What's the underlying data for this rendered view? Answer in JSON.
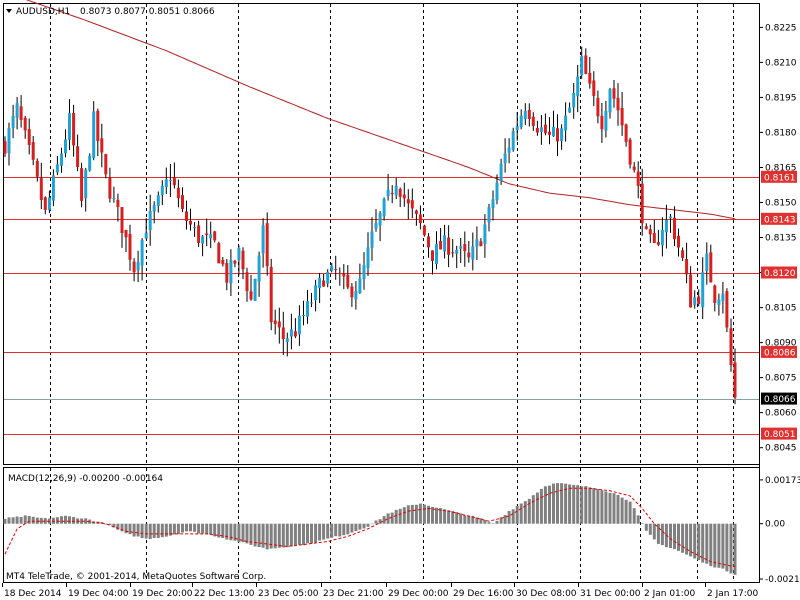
{
  "header": {
    "symbol_label": "AUDUSD,H1",
    "ohlc": "0.8073 0.8077 0.8051 0.8066"
  },
  "copyright": "MT4 TeleTrade, © 2001-2014, MetaQuotes Software Corp.",
  "colors": {
    "background": "#ffffff",
    "bull": "#1fa3d6",
    "bear": "#d61f1f",
    "level_line": "#e03030",
    "ma_line": "#b22222",
    "macd_hist": "#808080",
    "signal": "#e00000",
    "grid": "#000000"
  },
  "chart_data": [
    {
      "type": "candlestick",
      "title": "AUDUSD,H1",
      "ylim": [
        0.8038,
        0.8235
      ],
      "y_ticks": [
        "0.8225",
        "0.8210",
        "0.8195",
        "0.8180",
        "0.8165",
        "0.8150",
        "0.8135",
        "0.8120",
        "0.8105",
        "0.8090",
        "0.8075",
        "0.8060",
        "0.8045"
      ],
      "current_price": "0.8066",
      "horizontal_levels": [
        "0.8161",
        "0.8143",
        "0.8120",
        "0.8086",
        "0.8051"
      ],
      "x_tick_labels": [
        "18 Dec 2014",
        "19 Dec 04:00",
        "19 Dec 20:00",
        "22 Dec 13:00",
        "23 Dec 05:00",
        "23 Dec 21:00",
        "29 Dec 00:00",
        "29 Dec 16:00",
        "30 Dec 08:00",
        "31 Dec 00:00",
        "2 Jan 01:00",
        "2 Jan 17:00"
      ],
      "path": [
        [
          0,
          0.8175
        ],
        [
          3,
          0.819
        ],
        [
          7,
          0.8165
        ],
        [
          10,
          0.8145
        ],
        [
          13,
          0.8165
        ],
        [
          16,
          0.8185
        ],
        [
          19,
          0.815
        ],
        [
          22,
          0.8185
        ],
        [
          25,
          0.816
        ],
        [
          29,
          0.814
        ],
        [
          32,
          0.8122
        ],
        [
          35,
          0.814
        ],
        [
          38,
          0.815
        ],
        [
          41,
          0.8162
        ],
        [
          44,
          0.8145
        ],
        [
          48,
          0.8135
        ],
        [
          52,
          0.8132
        ],
        [
          55,
          0.8118
        ],
        [
          58,
          0.8128
        ],
        [
          61,
          0.8108
        ],
        [
          64,
          0.8138
        ],
        [
          66,
          0.81
        ],
        [
          69,
          0.8092
        ],
        [
          72,
          0.8095
        ],
        [
          76,
          0.8108
        ],
        [
          79,
          0.8118
        ],
        [
          82,
          0.812
        ],
        [
          85,
          0.8112
        ],
        [
          88,
          0.8115
        ],
        [
          91,
          0.8135
        ],
        [
          94,
          0.8148
        ],
        [
          97,
          0.816
        ],
        [
          100,
          0.8148
        ],
        [
          103,
          0.814
        ],
        [
          106,
          0.8128
        ],
        [
          109,
          0.8132
        ],
        [
          112,
          0.813
        ],
        [
          115,
          0.8125
        ],
        [
          118,
          0.8135
        ],
        [
          120,
          0.8145
        ],
        [
          123,
          0.8165
        ],
        [
          126,
          0.818
        ],
        [
          129,
          0.8192
        ],
        [
          132,
          0.8183
        ],
        [
          135,
          0.8178
        ],
        [
          138,
          0.818
        ],
        [
          141,
          0.8195
        ],
        [
          143,
          0.821
        ],
        [
          145,
          0.8198
        ],
        [
          148,
          0.8185
        ],
        [
          150,
          0.82
        ],
        [
          152,
          0.819
        ],
        [
          155,
          0.817
        ],
        [
          157,
          0.8155
        ],
        [
          159,
          0.8135
        ],
        [
          161,
          0.813
        ],
        [
          163,
          0.814
        ],
        [
          165,
          0.8143
        ],
        [
          168,
          0.8125
        ],
        [
          170,
          0.8108
        ],
        [
          172,
          0.811
        ],
        [
          174,
          0.8125
        ],
        [
          176,
          0.811
        ],
        [
          178,
          0.8113
        ],
        [
          179,
          0.8095
        ],
        [
          180,
          0.808
        ],
        [
          181,
          0.8066
        ]
      ],
      "ma_path": [
        [
          0,
          0.824
        ],
        [
          20,
          0.8228
        ],
        [
          40,
          0.8215
        ],
        [
          60,
          0.82
        ],
        [
          80,
          0.8186
        ],
        [
          100,
          0.8174
        ],
        [
          115,
          0.8165
        ],
        [
          125,
          0.8158
        ],
        [
          135,
          0.8154
        ],
        [
          145,
          0.8152
        ],
        [
          155,
          0.8149
        ],
        [
          165,
          0.8147
        ],
        [
          175,
          0.8145
        ],
        [
          181,
          0.8143
        ]
      ]
    },
    {
      "type": "bar",
      "title": "MACD(12,26,9) -0.00200 -0.00164",
      "ylim": [
        -0.0023,
        0.0022
      ],
      "y_ticks": [
        "0.00173",
        "0.00",
        "-0.00218"
      ],
      "hist_path": [
        [
          0,
          0.0002
        ],
        [
          5,
          0.0003
        ],
        [
          10,
          0.0002
        ],
        [
          15,
          0.0003
        ],
        [
          20,
          0.0002
        ],
        [
          25,
          0.0
        ],
        [
          30,
          -0.0004
        ],
        [
          35,
          -0.0006
        ],
        [
          40,
          -0.0005
        ],
        [
          45,
          -0.0003
        ],
        [
          50,
          -0.0004
        ],
        [
          55,
          -0.0006
        ],
        [
          60,
          -0.0008
        ],
        [
          65,
          -0.001
        ],
        [
          70,
          -0.0009
        ],
        [
          75,
          -0.0008
        ],
        [
          80,
          -0.0006
        ],
        [
          85,
          -0.0004
        ],
        [
          90,
          -0.0001
        ],
        [
          95,
          0.0004
        ],
        [
          100,
          0.0007
        ],
        [
          103,
          0.0008
        ],
        [
          108,
          0.0006
        ],
        [
          113,
          0.0004
        ],
        [
          118,
          0.0002
        ],
        [
          121,
          0.0
        ],
        [
          125,
          0.0005
        ],
        [
          130,
          0.001
        ],
        [
          134,
          0.0015
        ],
        [
          137,
          0.0016
        ],
        [
          142,
          0.0015
        ],
        [
          147,
          0.0014
        ],
        [
          151,
          0.0012
        ],
        [
          155,
          0.0009
        ],
        [
          159,
          -0.0003
        ],
        [
          162,
          -0.0008
        ],
        [
          166,
          -0.001
        ],
        [
          170,
          -0.0013
        ],
        [
          174,
          -0.0016
        ],
        [
          178,
          -0.0018
        ],
        [
          181,
          -0.002
        ]
      ],
      "signal_path": [
        [
          0,
          -0.0012
        ],
        [
          3,
          -0.0002
        ],
        [
          6,
          0.0001
        ],
        [
          10,
          0.0001
        ],
        [
          15,
          0.0001
        ],
        [
          20,
          0.0001
        ],
        [
          25,
          0.0
        ],
        [
          30,
          -0.0003
        ],
        [
          35,
          -0.0004
        ],
        [
          40,
          -0.0004
        ],
        [
          45,
          -0.0004
        ],
        [
          50,
          -0.0004
        ],
        [
          55,
          -0.0005
        ],
        [
          60,
          -0.0007
        ],
        [
          65,
          -0.0008
        ],
        [
          70,
          -0.0009
        ],
        [
          75,
          -0.0008
        ],
        [
          80,
          -0.0007
        ],
        [
          85,
          -0.0005
        ],
        [
          90,
          -0.0002
        ],
        [
          95,
          0.0002
        ],
        [
          100,
          0.0005
        ],
        [
          105,
          0.0006
        ],
        [
          110,
          0.0005
        ],
        [
          115,
          0.0003
        ],
        [
          120,
          0.0001
        ],
        [
          125,
          0.0003
        ],
        [
          130,
          0.0008
        ],
        [
          135,
          0.0012
        ],
        [
          140,
          0.0014
        ],
        [
          145,
          0.0014
        ],
        [
          150,
          0.0013
        ],
        [
          155,
          0.0011
        ],
        [
          158,
          0.0006
        ],
        [
          161,
          0.0
        ],
        [
          165,
          -0.0006
        ],
        [
          170,
          -0.0011
        ],
        [
          175,
          -0.0015
        ],
        [
          178,
          -0.0016
        ],
        [
          181,
          -0.0017
        ]
      ]
    }
  ]
}
